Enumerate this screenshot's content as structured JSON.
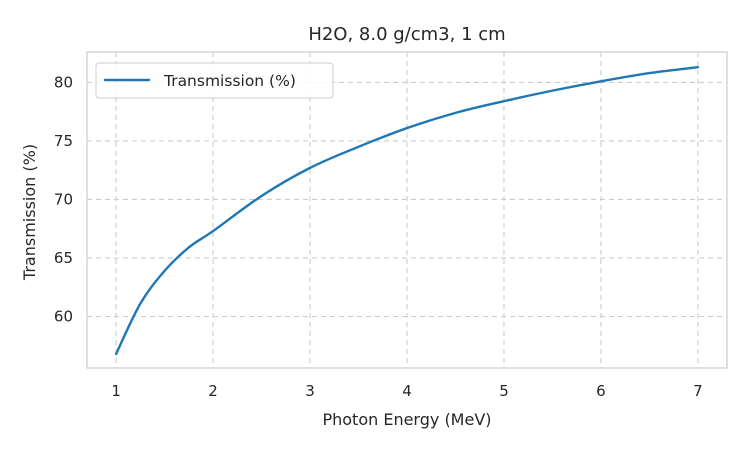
{
  "chart_data": {
    "type": "line",
    "title": "H2O, 8.0 g/cm3, 1 cm",
    "xlabel": "Photon Energy (MeV)",
    "ylabel": "Transmission (%)",
    "xlim": [
      0.7,
      7.3
    ],
    "ylim": [
      55.6,
      82.6
    ],
    "xticks": [
      1,
      2,
      3,
      4,
      5,
      6,
      7
    ],
    "yticks": [
      60,
      65,
      70,
      75,
      80
    ],
    "grid": true,
    "legend_position": "top-left",
    "series": [
      {
        "name": "Transmission (%)",
        "color": "#1f77b4",
        "x": [
          1.0,
          1.25,
          1.5,
          1.75,
          2.0,
          2.5,
          3.0,
          3.5,
          4.0,
          4.5,
          5.0,
          5.5,
          6.0,
          6.5,
          7.0
        ],
        "y": [
          56.8,
          61.1,
          63.9,
          65.9,
          67.3,
          70.3,
          72.7,
          74.5,
          76.1,
          77.4,
          78.4,
          79.3,
          80.1,
          80.8,
          81.3
        ]
      }
    ]
  }
}
